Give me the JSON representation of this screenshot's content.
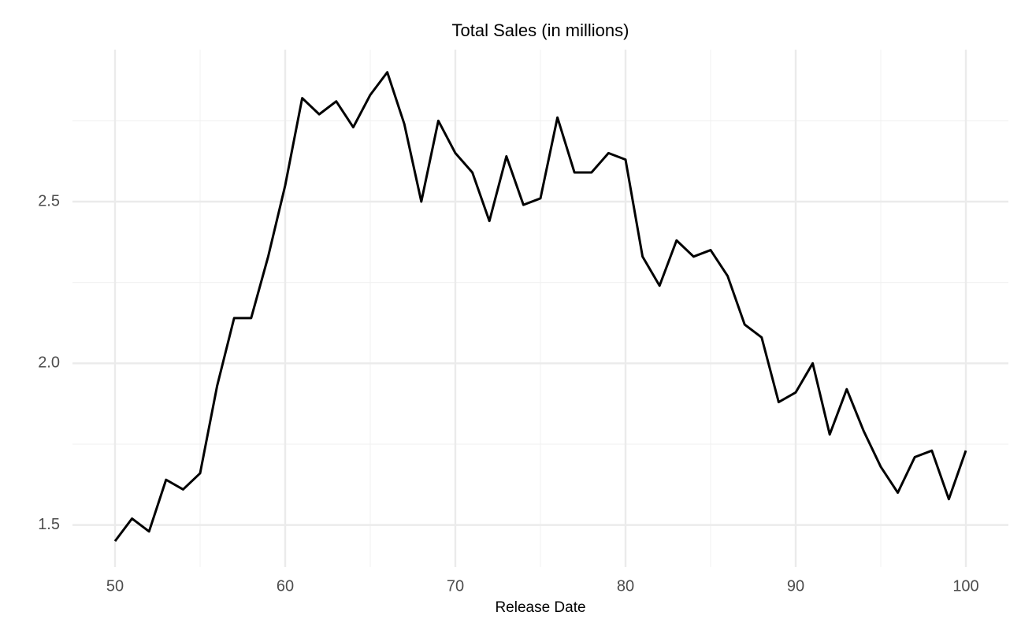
{
  "chart_data": {
    "type": "line",
    "title": "Total Sales (in millions)",
    "x_label": "Release Date",
    "x": [
      50,
      51,
      52,
      53,
      54,
      55,
      56,
      57,
      58,
      59,
      60,
      61,
      62,
      63,
      64,
      65,
      66,
      67,
      68,
      69,
      70,
      71,
      72,
      73,
      74,
      75,
      76,
      77,
      78,
      79,
      80,
      81,
      82,
      83,
      84,
      85,
      86,
      87,
      88,
      89,
      90,
      91,
      92,
      93,
      94,
      95,
      96,
      97,
      98,
      99,
      100
    ],
    "series": [
      {
        "color": "#000000",
        "values": [
          1.45,
          1.52,
          1.48,
          1.64,
          1.61,
          1.66,
          1.93,
          2.14,
          2.14,
          2.33,
          2.55,
          2.82,
          2.77,
          2.81,
          2.73,
          2.83,
          2.9,
          2.74,
          2.5,
          2.75,
          2.65,
          2.59,
          2.44,
          2.64,
          2.49,
          2.51,
          2.76,
          2.59,
          2.59,
          2.65,
          2.63,
          2.33,
          2.24,
          2.38,
          2.33,
          2.35,
          2.27,
          2.12,
          2.08,
          1.88,
          1.91,
          2.0,
          1.78,
          1.92,
          1.79,
          1.68,
          1.6,
          1.71,
          1.73,
          1.58,
          1.73
        ]
      }
    ],
    "xlim": [
      47.5,
      102.5
    ],
    "ylim": [
      1.37,
      2.97
    ],
    "xticks": [
      50,
      60,
      70,
      80,
      90,
      100
    ],
    "yticks": [
      {
        "value": 1.5,
        "label": "1.5"
      },
      {
        "value": 2.0,
        "label": "2.0"
      },
      {
        "value": 2.5,
        "label": "2.5"
      }
    ],
    "x_minor_grid": [
      55,
      65,
      75,
      85,
      95
    ],
    "y_minor_grid": [
      1.75,
      2.25,
      2.75
    ],
    "grid": true
  }
}
